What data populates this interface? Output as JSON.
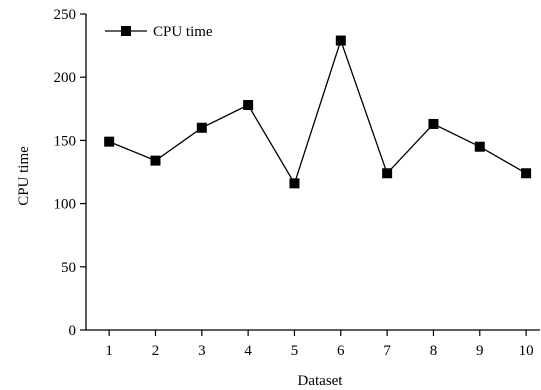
{
  "chart_data": {
    "type": "line",
    "x": [
      1,
      2,
      3,
      4,
      5,
      6,
      7,
      8,
      9,
      10
    ],
    "series": [
      {
        "name": "CPU time",
        "values": [
          149,
          134,
          160,
          178,
          116,
          229,
          124,
          163,
          145,
          124
        ]
      }
    ],
    "xlabel": "Dataset",
    "ylabel": "CPU time",
    "xticks": [
      "1",
      "2",
      "3",
      "4",
      "5",
      "6",
      "7",
      "8",
      "9",
      "10"
    ],
    "yticks": [
      "0",
      "50",
      "100",
      "150",
      "200",
      "250"
    ],
    "ylim": [
      0,
      250
    ],
    "xlim": [
      0.5,
      10.3
    ],
    "grid": false,
    "legend_position": "top-left",
    "marker": "square",
    "line_color": "#000000"
  }
}
